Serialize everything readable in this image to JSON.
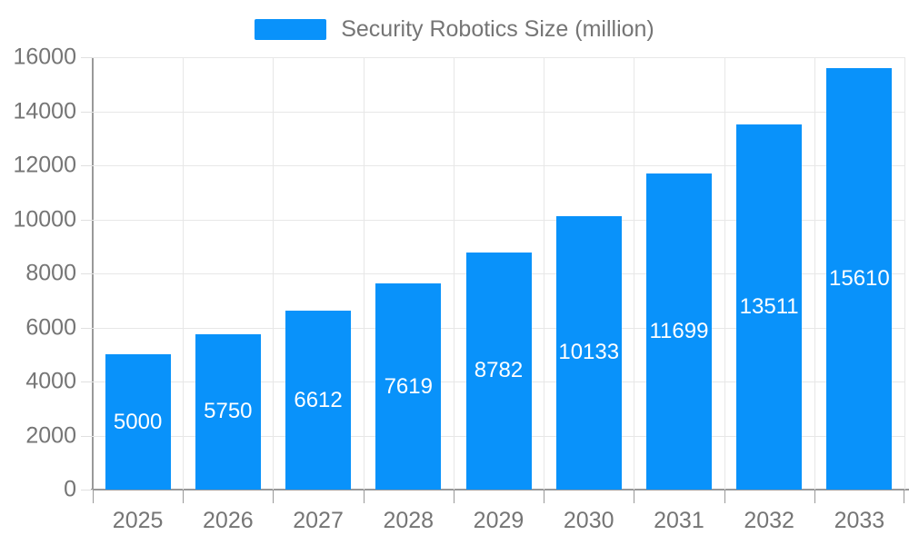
{
  "legend": {
    "label": "Security Robotics Size (million)"
  },
  "chart_data": {
    "type": "bar",
    "title": "",
    "xlabel": "",
    "ylabel": "",
    "categories": [
      "2025",
      "2026",
      "2027",
      "2028",
      "2029",
      "2030",
      "2031",
      "2032",
      "2033"
    ],
    "series": [
      {
        "name": "Security Robotics Size (million)",
        "values": [
          5000,
          5750,
          6612,
          7619,
          8782,
          10133,
          11699,
          13511,
          15610
        ]
      }
    ],
    "ylim": [
      0,
      16000
    ],
    "y_ticks": [
      0,
      2000,
      4000,
      6000,
      8000,
      10000,
      12000,
      14000,
      16000
    ],
    "grid": "both",
    "legend_position": "top-center",
    "colors": {
      "bar": "#0992fa",
      "bar_label": "#ffffff",
      "axis_line": "#999999",
      "gridline": "#e7e7e7",
      "text": "#757575"
    }
  }
}
